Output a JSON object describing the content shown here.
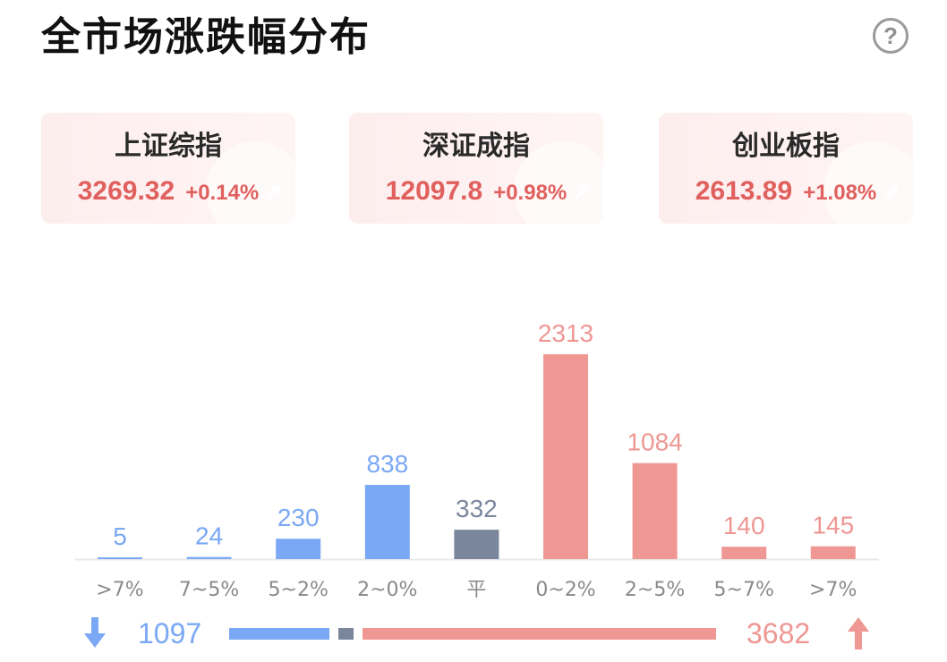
{
  "header": {
    "title": "全市场涨跌幅分布",
    "help_icon": "?"
  },
  "indices": [
    {
      "name": "上证综指",
      "value": "3269.32",
      "change": "+0.14%"
    },
    {
      "name": "深证成指",
      "value": "12097.8",
      "change": "+0.98%"
    },
    {
      "name": "创业板指",
      "value": "2613.89",
      "change": "+1.08%"
    }
  ],
  "colors": {
    "down": "#7aa8f5",
    "flat": "#7a869c",
    "up": "#ee9793",
    "index_up": "#e0605e",
    "axis": "#e8e8e8",
    "tick": "#8a8a8a"
  },
  "chart_data": {
    "type": "bar",
    "categories": [
      ">7%",
      "7~5%",
      "5~2%",
      "2~0%",
      "平",
      "0~2%",
      "2~5%",
      "5~7%",
      ">7%"
    ],
    "values": [
      5,
      24,
      230,
      838,
      332,
      2313,
      1084,
      140,
      145
    ],
    "groups": [
      "down",
      "down",
      "down",
      "down",
      "flat",
      "up",
      "up",
      "up",
      "up"
    ],
    "ylim": [
      0,
      2313
    ]
  },
  "footer": {
    "down_icon": "down-arrow-icon",
    "down_total": "1097",
    "up_total": "3682",
    "up_icon": "up-arrow-icon",
    "ratio": {
      "down": 1097,
      "flat": 332,
      "up": 3682
    }
  }
}
